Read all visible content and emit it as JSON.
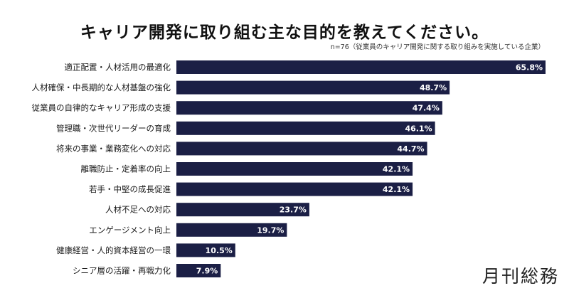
{
  "chart_data": {
    "type": "bar",
    "orientation": "horizontal",
    "title": "キャリア開発に取り組む主な目的を教えてください。",
    "subtitle": "n=76（従業員のキャリア開発に関する取り組みを実施している企業）",
    "categories": [
      "適正配置・人材活用の最適化",
      "人材確保・中長期的な人材基盤の強化",
      "従業員の自律的なキャリア形成の支援",
      "管理職・次世代リーダーの育成",
      "将来の事業・業務変化への対応",
      "離職防止・定着率の向上",
      "若手・中堅の成長促進",
      "人材不足への対応",
      "エンゲージメント向上",
      "健康経営・人的資本経営の一環",
      "シニア層の活躍・再戦力化"
    ],
    "values": [
      65.8,
      48.7,
      47.4,
      46.1,
      44.7,
      42.1,
      42.1,
      23.7,
      19.7,
      10.5,
      7.9
    ],
    "value_labels": [
      "65.8%",
      "48.7%",
      "47.4%",
      "46.1%",
      "44.7%",
      "42.1%",
      "42.1%",
      "23.7%",
      "19.7%",
      "10.5%",
      "7.9%"
    ],
    "xlim": [
      0,
      65.8
    ],
    "bar_color": "#1b1f45",
    "label_color": "#ffffff",
    "grid": false,
    "legend": "none"
  },
  "brand": "月刊総務"
}
